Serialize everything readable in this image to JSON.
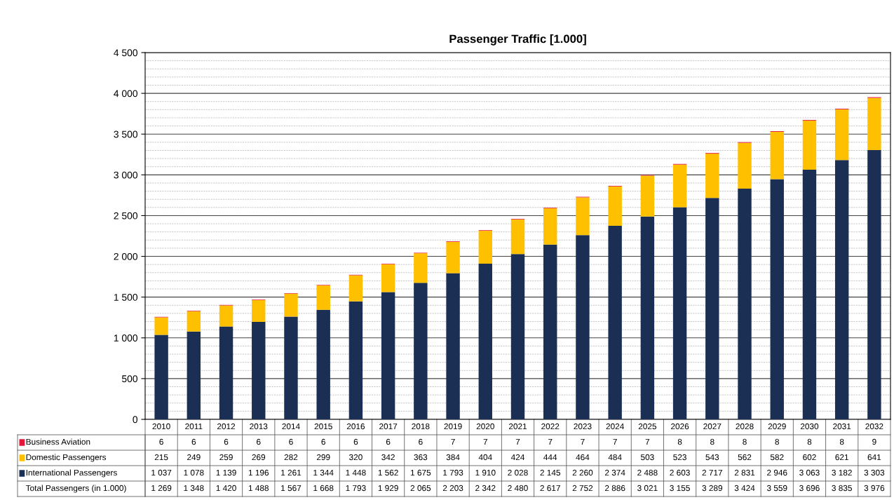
{
  "chart_data": {
    "type": "bar",
    "title": "Passenger Traffic [1.000]",
    "stacked": true,
    "categories": [
      "2010",
      "2011",
      "2012",
      "2013",
      "2014",
      "2015",
      "2016",
      "2017",
      "2018",
      "2019",
      "2020",
      "2021",
      "2022",
      "2023",
      "2024",
      "2025",
      "2026",
      "2027",
      "2028",
      "2029",
      "2030",
      "2031",
      "2032"
    ],
    "series": [
      {
        "name": "International Passengers",
        "color": "#1b2f55",
        "values": [
          1037,
          1078,
          1139,
          1196,
          1261,
          1344,
          1448,
          1562,
          1675,
          1793,
          1910,
          2028,
          2145,
          2260,
          2374,
          2488,
          2603,
          2717,
          2831,
          2946,
          3063,
          3182,
          3303
        ],
        "value_labels": [
          "1 037",
          "1 078",
          "1 139",
          "1 196",
          "1 261",
          "1 344",
          "1 448",
          "1 562",
          "1 675",
          "1 793",
          "1 910",
          "2 028",
          "2 145",
          "2 260",
          "2 374",
          "2 488",
          "2 603",
          "2 717",
          "2 831",
          "2 946",
          "3 063",
          "3 182",
          "3 303"
        ]
      },
      {
        "name": "Domestic Passengers",
        "color": "#ffc000",
        "values": [
          215,
          249,
          259,
          269,
          282,
          299,
          320,
          342,
          363,
          384,
          404,
          424,
          444,
          464,
          484,
          503,
          523,
          543,
          562,
          582,
          602,
          621,
          641
        ],
        "value_labels": [
          "215",
          "249",
          "259",
          "269",
          "282",
          "299",
          "320",
          "342",
          "363",
          "384",
          "404",
          "424",
          "444",
          "464",
          "484",
          "503",
          "523",
          "543",
          "562",
          "582",
          "602",
          "621",
          "641"
        ]
      },
      {
        "name": "Business Aviation",
        "color": "#e3163a",
        "values": [
          6,
          6,
          6,
          6,
          6,
          6,
          6,
          6,
          6,
          7,
          7,
          7,
          7,
          7,
          7,
          7,
          8,
          8,
          8,
          8,
          8,
          8,
          9
        ],
        "value_labels": [
          "6",
          "6",
          "6",
          "6",
          "6",
          "6",
          "6",
          "6",
          "6",
          "7",
          "7",
          "7",
          "7",
          "7",
          "7",
          "7",
          "8",
          "8",
          "8",
          "8",
          "8",
          "8",
          "9"
        ]
      }
    ],
    "legend": "bottom left",
    "annotations": [
      "Total Passengers (in 1.000)",
      "1 269",
      "1 348",
      "1 420",
      "1 488",
      "1 567",
      "1 668",
      "1 793",
      "1 929",
      "2 065",
      "2 203",
      "2 342",
      "2 480",
      "2 617",
      "2 752",
      "2 886",
      "3 021",
      "3 155",
      "3 289",
      "3 424",
      "3 559",
      "3 696",
      "3 835",
      "3 976"
    ],
    "ylim": [
      0,
      4500
    ],
    "yticks": [
      0,
      {
        "value": 500,
        "label": "500"
      },
      {
        "value": 1000,
        "label": "1 000"
      },
      {
        "value": 1500,
        "label": "1 500"
      },
      {
        "value": 2000,
        "label": "2 000"
      },
      {
        "value": 2500,
        "label": "2 500"
      },
      {
        "value": 3000,
        "label": "3 000"
      },
      {
        "value": 3500,
        "label": "3 500"
      },
      {
        "value": 4000,
        "label": "4 000"
      },
      {
        "value": 4500,
        "label": "4 500"
      }
    ],
    "grid": "y"
  }
}
